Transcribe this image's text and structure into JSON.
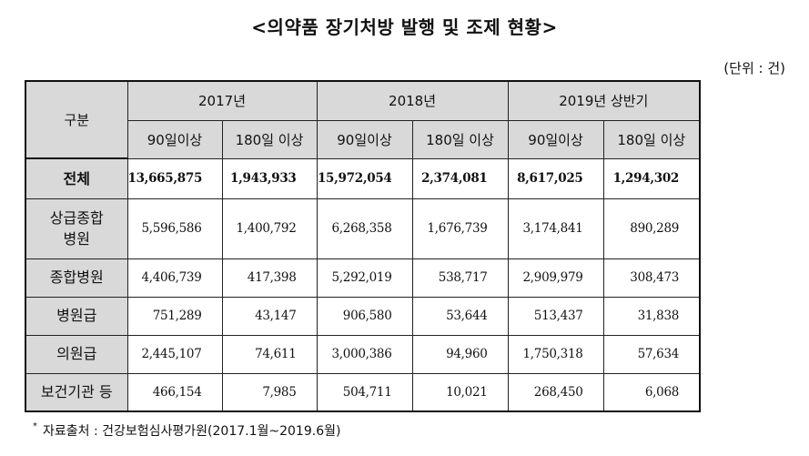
{
  "title": "<의약품 장기처방 발행 및 조제 현황>",
  "unit": "(단위 : 건)",
  "table": {
    "corner": "구분",
    "years": [
      "2017년",
      "2018년",
      "2019년 상반기"
    ],
    "subheaders": [
      "90일이상",
      "180일 이상"
    ],
    "rows": [
      {
        "label": "전체",
        "values": [
          "13,665,875",
          "1,943,933",
          "15,972,054",
          "2,374,081",
          "8,617,025",
          "1,294,302"
        ]
      },
      {
        "label_lines": [
          "상급종합",
          "병원"
        ],
        "values": [
          "5,596,586",
          "1,400,792",
          "6,268,358",
          "1,676,739",
          "3,174,841",
          "890,289"
        ]
      },
      {
        "label": "종합병원",
        "values": [
          "4,406,739",
          "417,398",
          "5,292,019",
          "538,717",
          "2,909,979",
          "308,473"
        ]
      },
      {
        "label": "병원급",
        "values": [
          "751,289",
          "43,147",
          "906,580",
          "53,644",
          "513,437",
          "31,838"
        ]
      },
      {
        "label": "의원급",
        "values": [
          "2,445,107",
          "74,611",
          "3,000,386",
          "94,960",
          "1,750,318",
          "57,634"
        ]
      },
      {
        "label": "보건기관 등",
        "values": [
          "466,154",
          "7,985",
          "504,711",
          "10,021",
          "268,450",
          "6,068"
        ]
      }
    ]
  },
  "note": {
    "marker": "*",
    "text": "자료출처 : 건강보험심사평가원(2017.1월~2019.6월)"
  }
}
